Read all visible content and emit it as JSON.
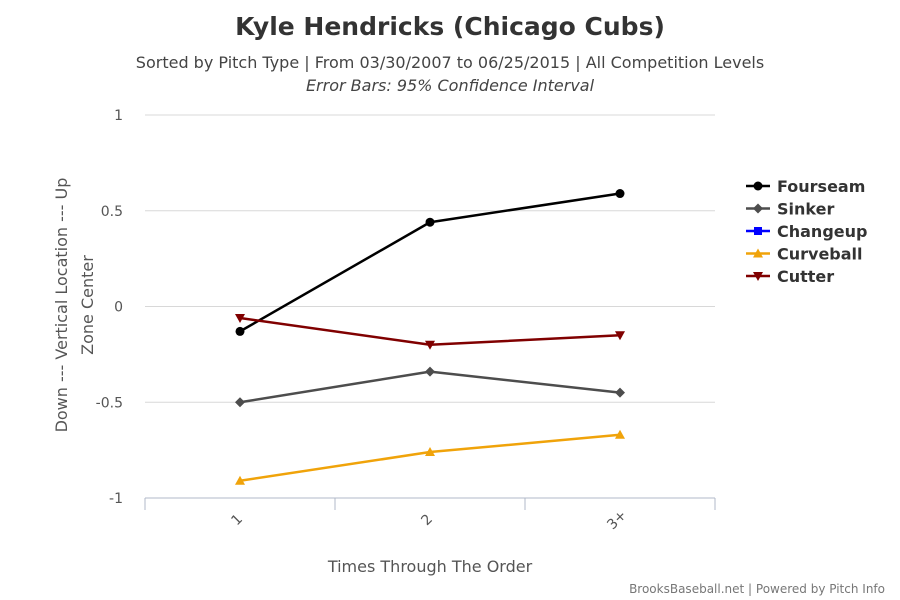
{
  "chart_data": {
    "type": "line",
    "title": "Kyle Hendricks (Chicago Cubs)",
    "subtitle": "Sorted by Pitch Type | From 03/30/2007 to 06/25/2015 | All Competition Levels",
    "subtitle2": "Error Bars: 95% Confidence Interval",
    "xlabel": "Times Through The Order",
    "ylabel_line1": "Down --- Vertical Location --- Up",
    "ylabel_line2": "Zone Center",
    "categories": [
      "1",
      "2",
      "3+"
    ],
    "ylim": [
      -1,
      1
    ],
    "yticks": [
      1,
      0.5,
      0,
      -0.5,
      -1
    ],
    "ytick_labels": [
      "1",
      "0.5",
      "0",
      "-0.5",
      "-1"
    ],
    "grid": true,
    "legend_position": "right",
    "series": [
      {
        "name": "Fourseam",
        "color": "#000000",
        "marker": "circle",
        "values": [
          -0.13,
          0.44,
          0.59
        ]
      },
      {
        "name": "Sinker",
        "color": "#4d4d4d",
        "marker": "diamond",
        "values": [
          -0.5,
          -0.34,
          -0.45
        ]
      },
      {
        "name": "Changeup",
        "color": "#0000ff",
        "marker": "square",
        "values": [
          null,
          null,
          null
        ]
      },
      {
        "name": "Curveball",
        "color": "#f0a30a",
        "marker": "triangle",
        "values": [
          -0.91,
          -0.76,
          -0.67
        ]
      },
      {
        "name": "Cutter",
        "color": "#800000",
        "marker": "triangle-down",
        "values": [
          -0.06,
          -0.2,
          -0.15
        ]
      }
    ],
    "credit": "BrooksBaseball.net | Powered by Pitch Info"
  }
}
